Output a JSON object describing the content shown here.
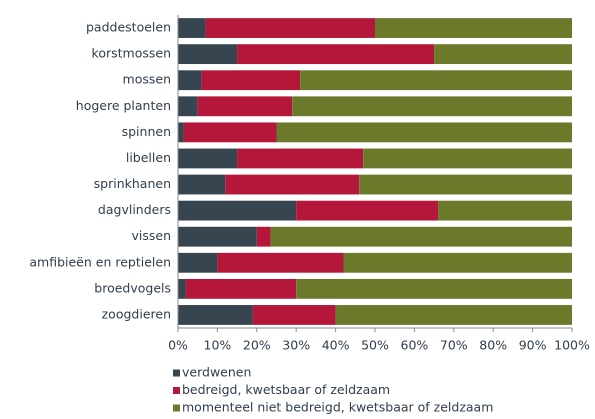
{
  "chart_data": {
    "type": "stacked_barh",
    "categories": [
      "paddestoelen",
      "korstmossen",
      "mossen",
      "hogere planten",
      "spinnen",
      "libellen",
      "sprinkhanen",
      "dagvlinders",
      "vissen",
      "amfibieën en reptielen",
      "broedvogels",
      "zoogdieren"
    ],
    "series": [
      {
        "name": "verdwenen",
        "color": "#36454f",
        "values": [
          7,
          15,
          6,
          5,
          1.5,
          15,
          12,
          30,
          20,
          10,
          2,
          19
        ]
      },
      {
        "name": "bedreigd, kwetsbaar of zeldzaam",
        "color": "#b5173a",
        "values": [
          43,
          50,
          25,
          24,
          23.5,
          32,
          34,
          36,
          3.5,
          32,
          28,
          21
        ]
      },
      {
        "name": "momenteel niet bedreigd, kwetsbaar of zeldzaam",
        "color": "#6b7a2a",
        "values": [
          50,
          35,
          69,
          71,
          75,
          53,
          54,
          34,
          76.5,
          58,
          70,
          60
        ]
      }
    ],
    "xlim": [
      0,
      100
    ],
    "xticks": [
      {
        "value": 0,
        "label": "0%"
      },
      {
        "value": 10,
        "label": "10%"
      },
      {
        "value": 20,
        "label": "20%"
      },
      {
        "value": 30,
        "label": "30%"
      },
      {
        "value": 40,
        "label": "40%"
      },
      {
        "value": 50,
        "label": "50%"
      },
      {
        "value": 60,
        "label": "60%"
      },
      {
        "value": 70,
        "label": "70%"
      },
      {
        "value": 80,
        "label": "80%"
      },
      {
        "value": 90,
        "label": "90%"
      },
      {
        "value": 100,
        "label": "100%"
      }
    ],
    "grid": false,
    "legend": "bottom"
  }
}
